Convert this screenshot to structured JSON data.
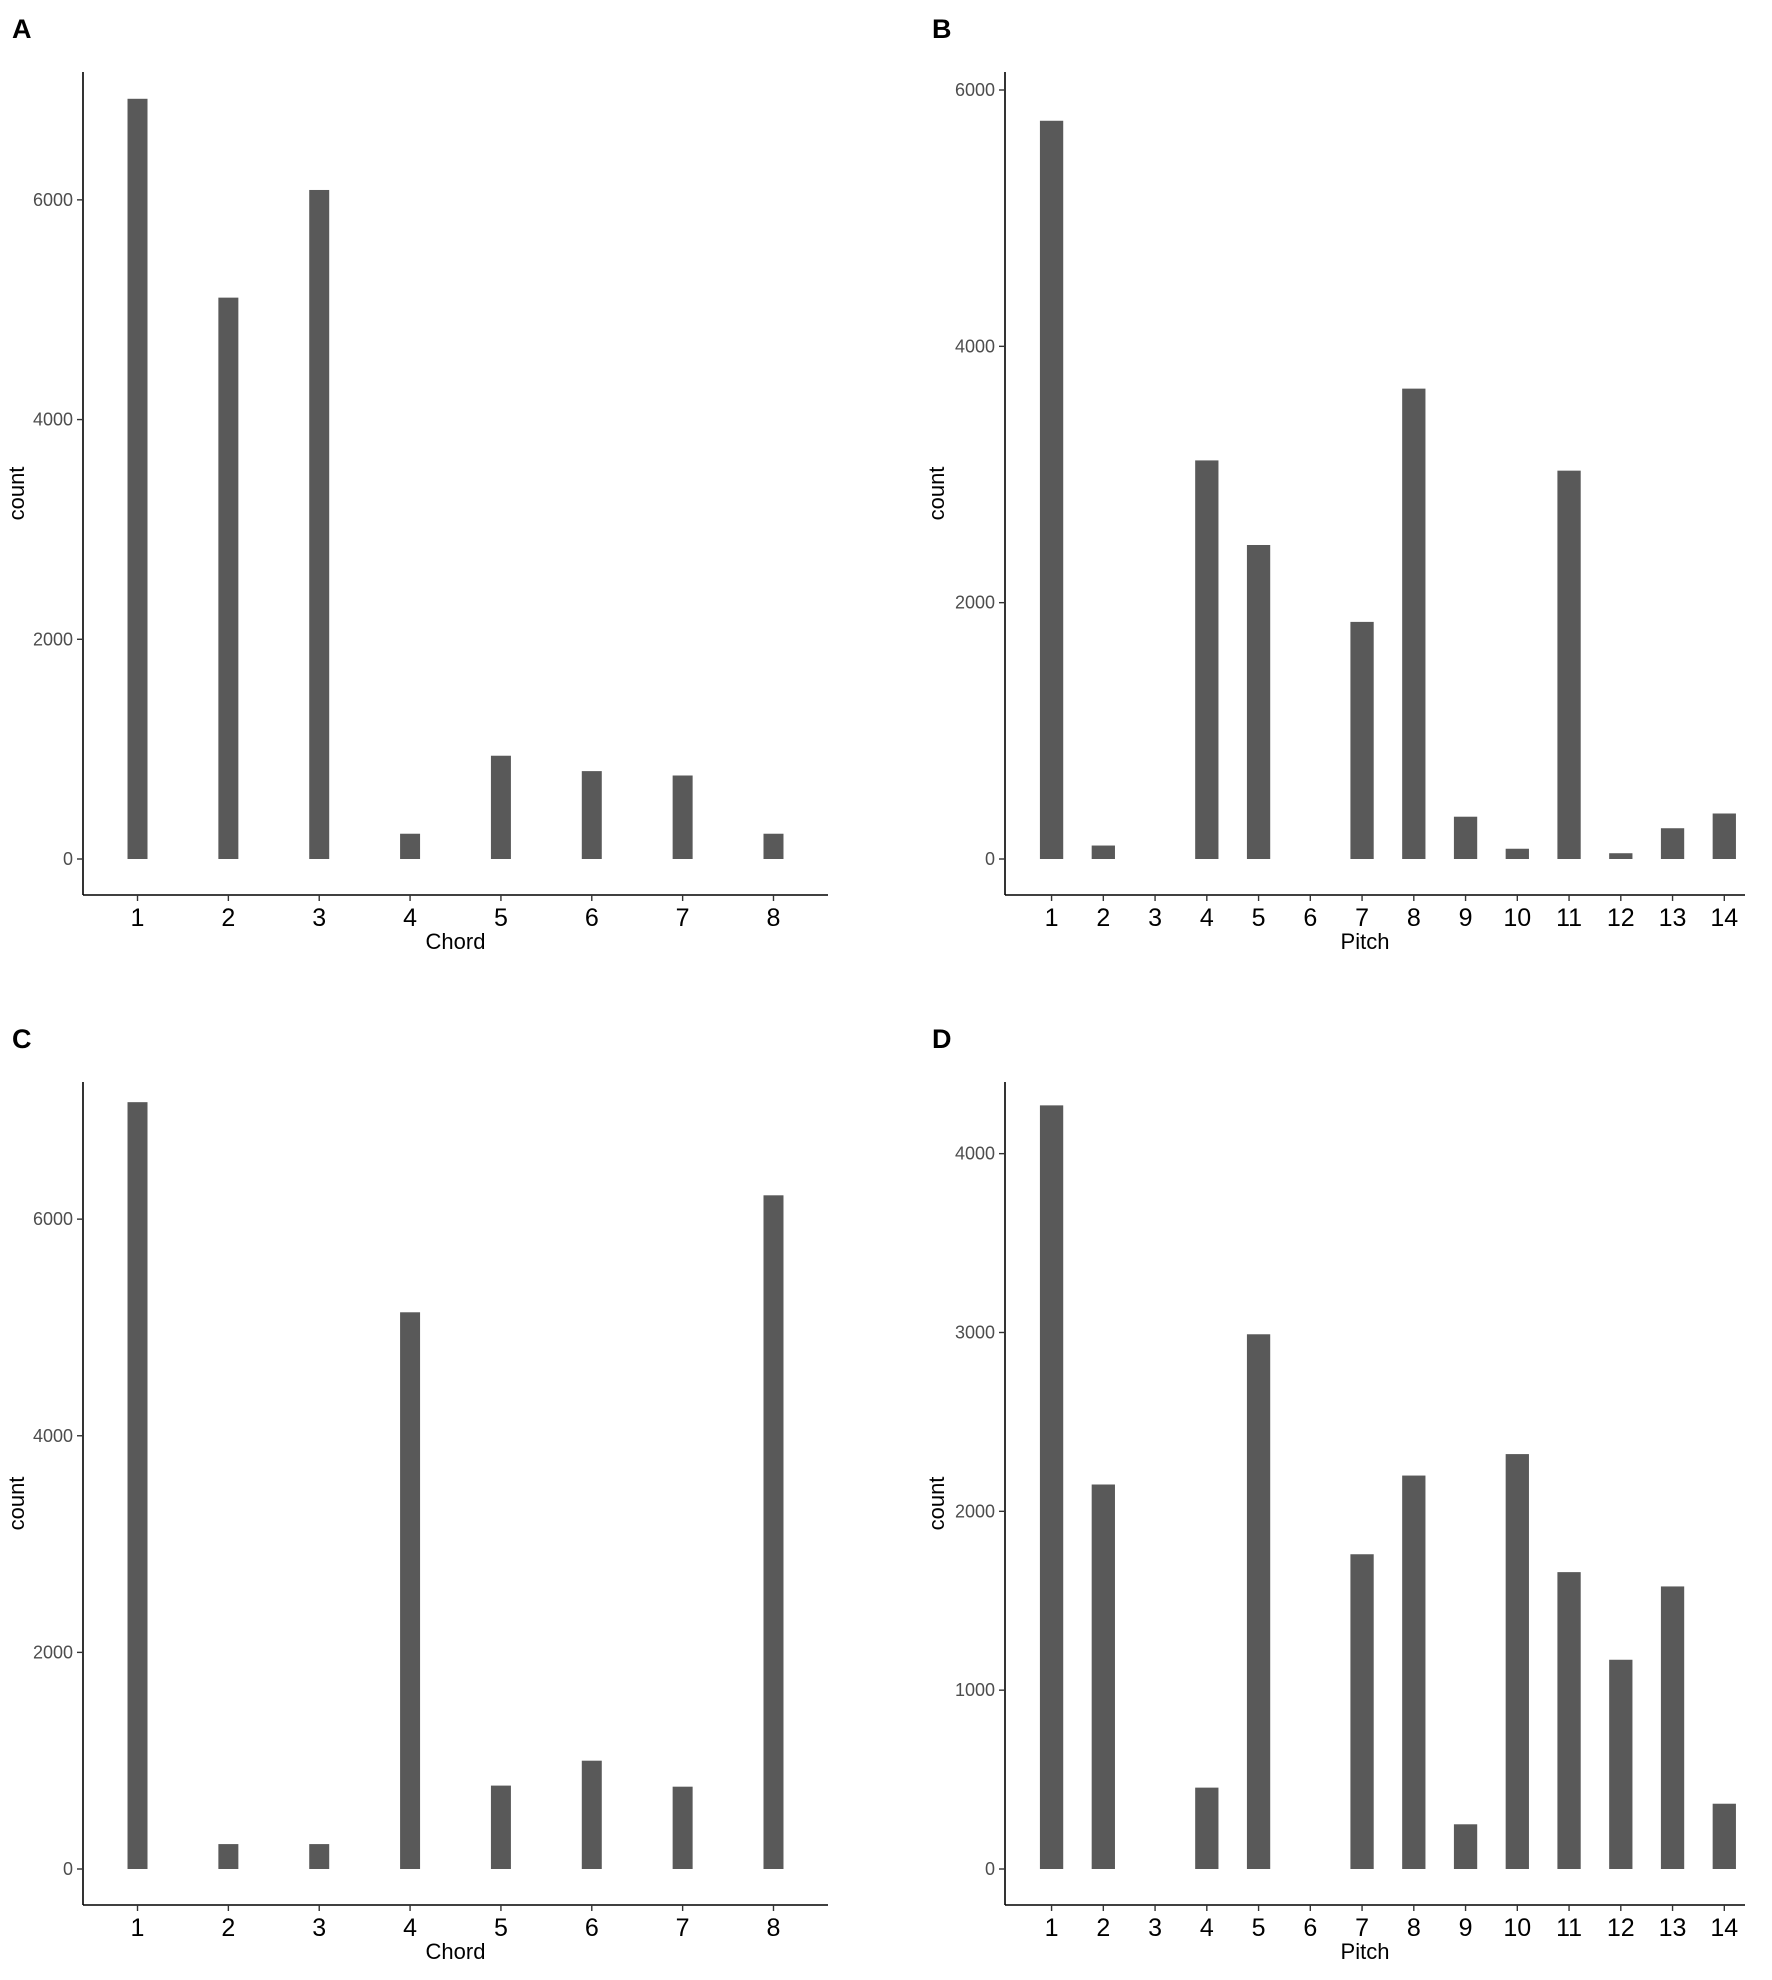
{
  "chart_data": [
    {
      "type": "bar",
      "panel": "A",
      "xlabel": "Chord",
      "ylabel": "count",
      "categories": [
        1,
        2,
        3,
        4,
        5,
        6,
        7,
        8
      ],
      "x": [
        1,
        2,
        3,
        4,
        5,
        6,
        7,
        8
      ],
      "values": [
        6920,
        5110,
        6090,
        230,
        940,
        800,
        760,
        230
      ],
      "ylim": [
        0,
        7000
      ],
      "yticks": [
        0,
        2000,
        4000,
        6000
      ],
      "xlim": [
        0.4,
        8.6
      ],
      "bar_width": 0.22,
      "color": "#595959",
      "grid": false
    },
    {
      "type": "bar",
      "panel": "B",
      "xlabel": "Pitch",
      "ylabel": "count",
      "categories": [
        1,
        2,
        3,
        4,
        5,
        6,
        7,
        8,
        9,
        10,
        11,
        12,
        13,
        14
      ],
      "x": [
        1,
        2,
        4,
        5,
        7,
        8,
        9,
        10,
        11,
        12,
        13,
        14
      ],
      "values": [
        5760,
        105,
        3110,
        2450,
        1850,
        3670,
        330,
        80,
        3030,
        45,
        240,
        355
      ],
      "ylim": [
        0,
        6000
      ],
      "yticks": [
        0,
        2000,
        4000,
        6000
      ],
      "xlim": [
        0.1,
        14.4
      ],
      "bar_width": 0.45,
      "color": "#595959",
      "grid": false
    },
    {
      "type": "bar",
      "panel": "C",
      "xlabel": "Chord",
      "ylabel": "count",
      "categories": [
        1,
        2,
        3,
        4,
        5,
        6,
        7,
        8
      ],
      "x": [
        1,
        2,
        3,
        4,
        5,
        6,
        7,
        8
      ],
      "values": [
        7080,
        230,
        230,
        5140,
        770,
        1000,
        760,
        6220
      ],
      "ylim": [
        0,
        7100
      ],
      "yticks": [
        0,
        2000,
        4000,
        6000
      ],
      "xlim": [
        0.4,
        8.6
      ],
      "bar_width": 0.22,
      "color": "#595959",
      "grid": false
    },
    {
      "type": "bar",
      "panel": "D",
      "xlabel": "Pitch",
      "ylabel": "count",
      "categories": [
        1,
        2,
        3,
        4,
        5,
        6,
        7,
        8,
        9,
        10,
        11,
        12,
        13,
        14
      ],
      "x": [
        1,
        2,
        4,
        5,
        7,
        8,
        9,
        10,
        11,
        12,
        13,
        14
      ],
      "values": [
        4270,
        2150,
        455,
        2990,
        1760,
        2200,
        250,
        2320,
        1660,
        1170,
        1580,
        365
      ],
      "ylim": [
        0,
        4300
      ],
      "yticks": [
        0,
        1000,
        2000,
        3000,
        4000
      ],
      "xlim": [
        0.1,
        14.4
      ],
      "bar_width": 0.45,
      "color": "#595959",
      "grid": false
    }
  ]
}
